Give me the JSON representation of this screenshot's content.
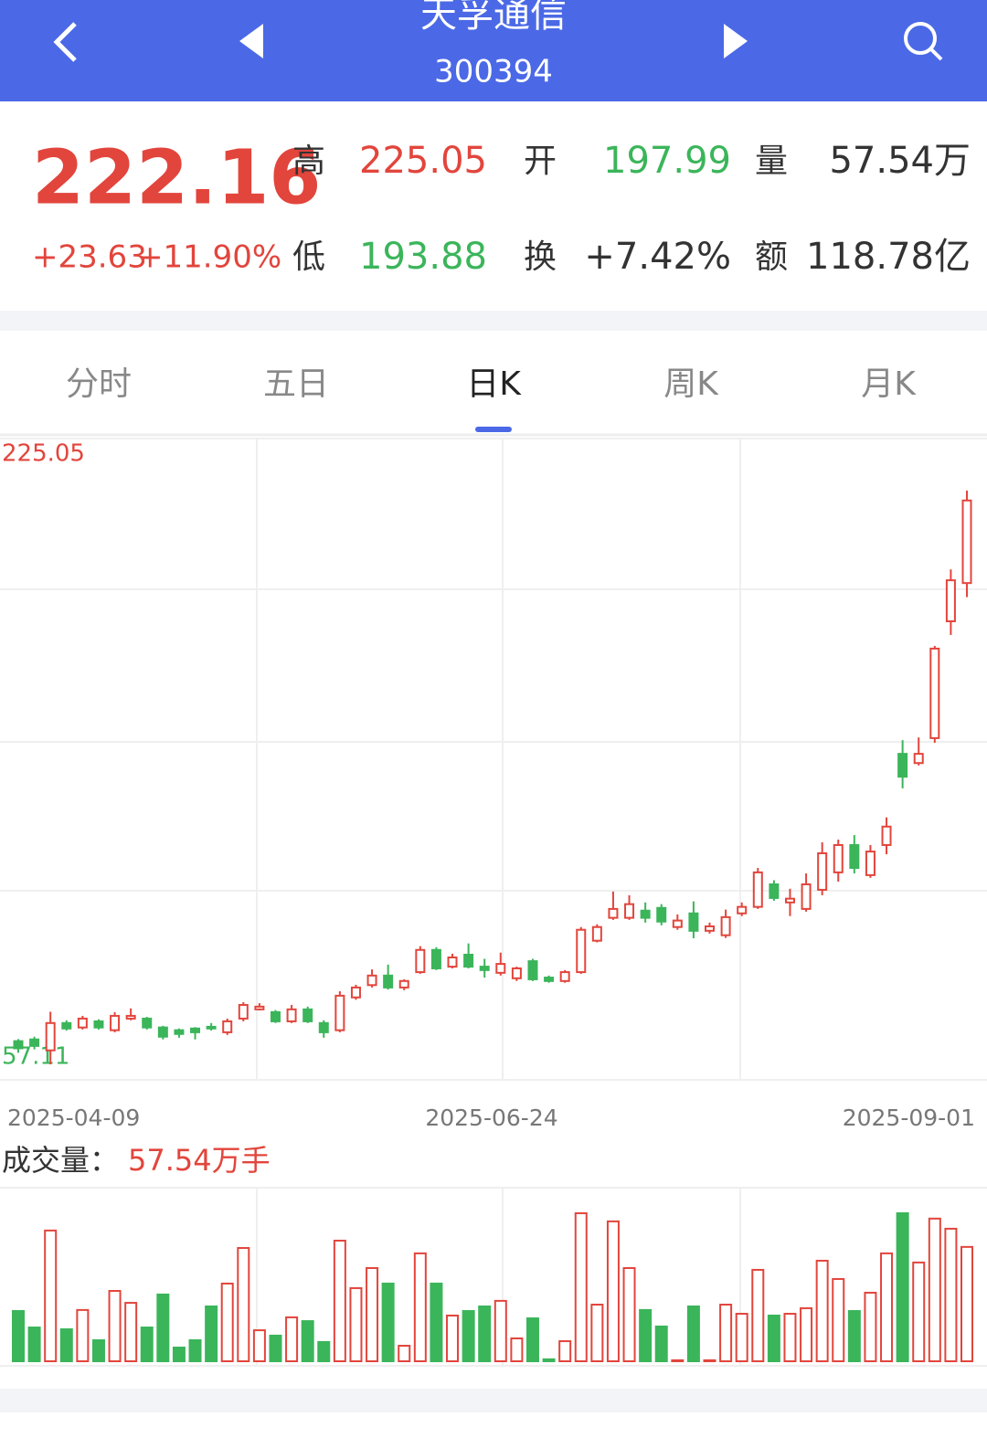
{
  "header": {
    "title": "天孚通信",
    "code": "300394"
  },
  "quote": {
    "price": 222.16,
    "change": "+23.63",
    "change_pct": "+11.90%",
    "fields": [
      {
        "label": "高",
        "value": 225.05
      },
      {
        "label": "开",
        "value": 197.99
      },
      {
        "label": "量",
        "value": "57.54万"
      },
      {
        "label": "低",
        "value": 193.88
      },
      {
        "label": "换",
        "value": "+7.42%"
      },
      {
        "label": "额",
        "value": "118.78亿"
      }
    ]
  },
  "tabs": [
    "分时",
    "五日",
    "日K",
    "周K",
    "月K"
  ],
  "active_tab": 2,
  "chart_data": [
    {
      "type": "candlestick",
      "categories": [
        "2025-04-09",
        null,
        null,
        null,
        null,
        null,
        null,
        null,
        null,
        null,
        null,
        null,
        null,
        null,
        null,
        null,
        null,
        null,
        null,
        null,
        null,
        null,
        null,
        null,
        null,
        null,
        null,
        null,
        null,
        null,
        "2025-06-24",
        null,
        null,
        null,
        null,
        null,
        null,
        null,
        null,
        null,
        null,
        null,
        null,
        null,
        null,
        null,
        null,
        null,
        null,
        null,
        null,
        null,
        null,
        null,
        null,
        null,
        null,
        null,
        null,
        "2025-09-01"
      ],
      "open": [
        63.9,
        64.4,
        61.2,
        69.2,
        67.9,
        69.7,
        67.1,
        70.5,
        70.5,
        67.9,
        67.1,
        67.6,
        68.1,
        66.5,
        70.5,
        73.2,
        72.4,
        69.7,
        73.2,
        69.2,
        67.1,
        76.7,
        80.3,
        83.1,
        79.6,
        84.1,
        90.6,
        85.7,
        89.2,
        85.7,
        83.9,
        82.3,
        87.3,
        82.5,
        81.5,
        84.1,
        93.3,
        100,
        100,
        102.1,
        102.9,
        97.3,
        101.3,
        96.2,
        94.9,
        101.3,
        103.2,
        109.8,
        104.5,
        102.6,
        108.2,
        113.3,
        121.3,
        112.5,
        121.3,
        148,
        145.3,
        152.6,
        186.8,
        197.99
      ],
      "high": [
        64.5,
        65.2,
        72.5,
        70,
        71.3,
        70.3,
        72.4,
        73.5,
        71,
        68.4,
        67.6,
        68,
        69.2,
        70.5,
        75.3,
        75,
        73,
        74.5,
        74,
        70,
        78.5,
        80.4,
        84.9,
        86.3,
        82,
        91.7,
        91.4,
        89.5,
        92.5,
        88,
        89.8,
        85.7,
        88,
        83.1,
        84.7,
        97.3,
        98.1,
        107.7,
        106.6,
        104.5,
        104,
        101,
        104.8,
        98.6,
        102.4,
        104.5,
        114.6,
        111,
        108.5,
        113,
        122.1,
        122.9,
        124.2,
        121.3,
        129.4,
        152,
        152.8,
        179.6,
        202,
        225.05
      ],
      "low": [
        60.5,
        61.5,
        57.11,
        67,
        67.3,
        67.3,
        66.5,
        70,
        67.3,
        64.4,
        64.9,
        64.4,
        67,
        65.7,
        69.7,
        72.9,
        69.2,
        69.2,
        69.2,
        64.9,
        66.5,
        76,
        79.6,
        79,
        78.8,
        83.6,
        84.7,
        85.2,
        85.2,
        82.5,
        83.1,
        81.5,
        81.5,
        81,
        81,
        83.6,
        92.8,
        99.4,
        99.4,
        98.6,
        97.8,
        96.5,
        94,
        95.4,
        94.1,
        100.5,
        102.6,
        105,
        100.5,
        101.8,
        106.6,
        110.6,
        113,
        111.7,
        118.6,
        137.9,
        144.6,
        151.2,
        182.8,
        193.88
      ],
      "close": [
        61.8,
        62.5,
        69.2,
        67.6,
        70.5,
        67.9,
        71.3,
        71.3,
        67.9,
        65.2,
        66,
        66.5,
        67.6,
        69.7,
        74.5,
        74,
        69.7,
        73.2,
        69.7,
        66.5,
        77.2,
        79.6,
        83.1,
        79.6,
        81.5,
        90.6,
        85.2,
        88.4,
        85.7,
        84.7,
        86.5,
        85.2,
        82,
        81.5,
        84.1,
        96.5,
        97.3,
        102.6,
        104,
        100,
        98.9,
        99.2,
        96.2,
        97.5,
        100.2,
        103.2,
        113.3,
        105.8,
        105.6,
        109.8,
        118.9,
        121.3,
        114.6,
        119.4,
        126.7,
        141.3,
        148,
        178.8,
        198.8,
        222.16
      ],
      "ylim": [
        57.11,
        225.05
      ],
      "yticks": [
        57.11,
        225.05
      ],
      "up_color": "#e2453c",
      "down_color": "#3bb55a"
    },
    {
      "type": "bar",
      "title": "成交量：",
      "value_label": "57.54万手",
      "values": [
        25.3,
        17,
        65.8,
        16.1,
        25.8,
        10.6,
        35.4,
        29.4,
        17,
        33.6,
        6.9,
        10.6,
        27.6,
        39.1,
        57,
        15.6,
        12.9,
        22.1,
        20.2,
        9.7,
        60.7,
        36.8,
        46.9,
        39.1,
        7.8,
        54.3,
        39.1,
        23,
        25.3,
        27.6,
        30.4,
        11.5,
        21.6,
        1,
        10.1,
        74.5,
        28.5,
        70.4,
        46.9,
        25.8,
        17.5,
        0.5,
        27.6,
        0.5,
        28.5,
        23.9,
        46,
        23,
        23.9,
        26.7,
        50.6,
        41.4,
        25.3,
        34.5,
        54.3,
        74.5,
        49.7,
        71.8,
        66.7,
        57.54
      ],
      "ylim": [
        0,
        80
      ]
    }
  ]
}
